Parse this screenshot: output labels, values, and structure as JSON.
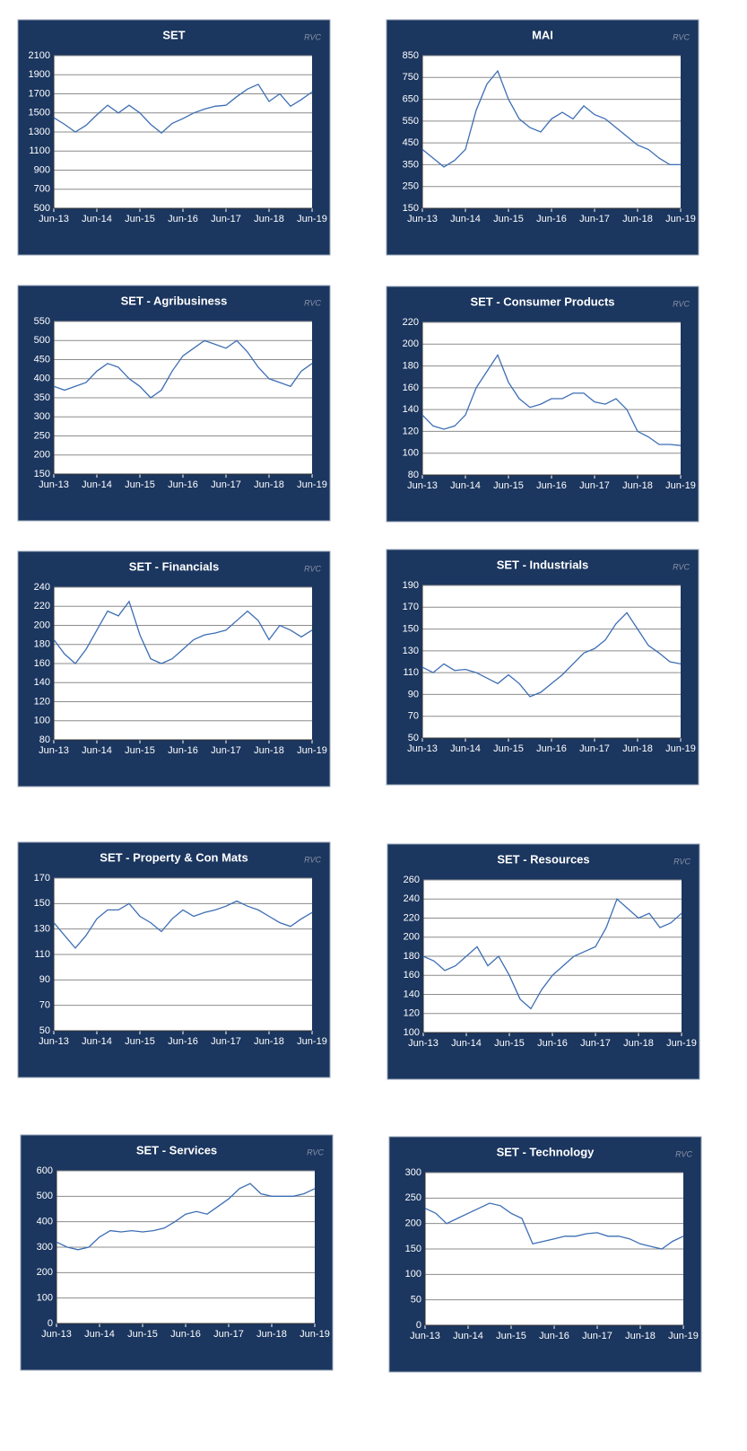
{
  "chart_data": [
    {
      "type": "line",
      "title": "SET",
      "annotation": "RVC",
      "color": "#3d6eb4",
      "x": [
        "Jun-13",
        "Sep-13",
        "Dec-13",
        "Mar-14",
        "Jun-14",
        "Sep-14",
        "Dec-14",
        "Mar-15",
        "Jun-15",
        "Sep-15",
        "Dec-15",
        "Mar-16",
        "Jun-16",
        "Sep-16",
        "Dec-16",
        "Mar-17",
        "Jun-17",
        "Sep-17",
        "Dec-17",
        "Mar-18",
        "Jun-18",
        "Sep-18",
        "Dec-18",
        "Mar-19",
        "Jun-19"
      ],
      "xticks": [
        "Jun-13",
        "Jun-14",
        "Jun-15",
        "Jun-16",
        "Jun-17",
        "Jun-18",
        "Jun-19"
      ],
      "values": [
        1450,
        1380,
        1300,
        1370,
        1480,
        1580,
        1500,
        1580,
        1500,
        1380,
        1290,
        1390,
        1440,
        1500,
        1540,
        1570,
        1580,
        1670,
        1750,
        1800,
        1620,
        1700,
        1570,
        1640,
        1720
      ],
      "ylim": [
        500,
        2100
      ],
      "yticks": [
        500,
        700,
        900,
        1100,
        1300,
        1500,
        1700,
        1900,
        2100
      ],
      "grid": true
    },
    {
      "type": "line",
      "title": "MAI",
      "annotation": "RVC",
      "color": "#3d6eb4",
      "x": [
        "Jun-13",
        "Sep-13",
        "Dec-13",
        "Mar-14",
        "Jun-14",
        "Sep-14",
        "Dec-14",
        "Mar-15",
        "Jun-15",
        "Sep-15",
        "Dec-15",
        "Mar-16",
        "Jun-16",
        "Sep-16",
        "Dec-16",
        "Mar-17",
        "Jun-17",
        "Sep-17",
        "Dec-17",
        "Mar-18",
        "Jun-18",
        "Sep-18",
        "Dec-18",
        "Mar-19",
        "Jun-19"
      ],
      "xticks": [
        "Jun-13",
        "Jun-14",
        "Jun-15",
        "Jun-16",
        "Jun-17",
        "Jun-18",
        "Jun-19"
      ],
      "values": [
        420,
        380,
        340,
        370,
        420,
        600,
        720,
        780,
        650,
        560,
        520,
        500,
        560,
        590,
        560,
        620,
        580,
        560,
        520,
        480,
        440,
        420,
        380,
        350,
        350
      ],
      "ylim": [
        150,
        850
      ],
      "yticks": [
        150,
        250,
        350,
        450,
        550,
        650,
        750,
        850
      ],
      "grid": true
    },
    {
      "type": "line",
      "title": "SET - Agribusiness",
      "annotation": "RVC",
      "color": "#3d6eb4",
      "x": [
        "Jun-13",
        "Sep-13",
        "Dec-13",
        "Mar-14",
        "Jun-14",
        "Sep-14",
        "Dec-14",
        "Mar-15",
        "Jun-15",
        "Sep-15",
        "Dec-15",
        "Mar-16",
        "Jun-16",
        "Sep-16",
        "Dec-16",
        "Mar-17",
        "Jun-17",
        "Sep-17",
        "Dec-17",
        "Mar-18",
        "Jun-18",
        "Sep-18",
        "Dec-18",
        "Mar-19",
        "Jun-19"
      ],
      "xticks": [
        "Jun-13",
        "Jun-14",
        "Jun-15",
        "Jun-16",
        "Jun-17",
        "Jun-18",
        "Jun-19"
      ],
      "values": [
        380,
        370,
        380,
        390,
        420,
        440,
        430,
        400,
        380,
        350,
        370,
        420,
        460,
        480,
        500,
        490,
        480,
        500,
        470,
        430,
        400,
        390,
        380,
        420,
        440
      ],
      "ylim": [
        150,
        550
      ],
      "yticks": [
        150,
        200,
        250,
        300,
        350,
        400,
        450,
        500,
        550
      ],
      "grid": true
    },
    {
      "type": "line",
      "title": "SET - Consumer Products",
      "annotation": "RVC",
      "color": "#3d6eb4",
      "x": [
        "Jun-13",
        "Sep-13",
        "Dec-13",
        "Mar-14",
        "Jun-14",
        "Sep-14",
        "Dec-14",
        "Mar-15",
        "Jun-15",
        "Sep-15",
        "Dec-15",
        "Mar-16",
        "Jun-16",
        "Sep-16",
        "Dec-16",
        "Mar-17",
        "Jun-17",
        "Sep-17",
        "Dec-17",
        "Mar-18",
        "Jun-18",
        "Sep-18",
        "Dec-18",
        "Mar-19",
        "Jun-19"
      ],
      "xticks": [
        "Jun-13",
        "Jun-14",
        "Jun-15",
        "Jun-16",
        "Jun-17",
        "Jun-18",
        "Jun-19"
      ],
      "values": [
        135,
        125,
        122,
        125,
        135,
        160,
        175,
        190,
        165,
        150,
        142,
        145,
        150,
        150,
        155,
        155,
        147,
        145,
        150,
        140,
        120,
        115,
        108,
        108,
        107
      ],
      "ylim": [
        80,
        220
      ],
      "yticks": [
        80,
        100,
        120,
        140,
        160,
        180,
        200,
        220
      ],
      "grid": true
    },
    {
      "type": "line",
      "title": "SET - Financials",
      "annotation": "RVC",
      "color": "#3d6eb4",
      "x": [
        "Jun-13",
        "Sep-13",
        "Dec-13",
        "Mar-14",
        "Jun-14",
        "Sep-14",
        "Dec-14",
        "Mar-15",
        "Jun-15",
        "Sep-15",
        "Dec-15",
        "Mar-16",
        "Jun-16",
        "Sep-16",
        "Dec-16",
        "Mar-17",
        "Jun-17",
        "Sep-17",
        "Dec-17",
        "Mar-18",
        "Jun-18",
        "Sep-18",
        "Dec-18",
        "Mar-19",
        "Jun-19"
      ],
      "xticks": [
        "Jun-13",
        "Jun-14",
        "Jun-15",
        "Jun-16",
        "Jun-17",
        "Jun-18",
        "Jun-19"
      ],
      "values": [
        185,
        170,
        160,
        175,
        195,
        215,
        210,
        225,
        190,
        165,
        160,
        165,
        175,
        185,
        190,
        192,
        195,
        205,
        215,
        205,
        185,
        200,
        195,
        188,
        195
      ],
      "ylim": [
        80,
        240
      ],
      "yticks": [
        80,
        100,
        120,
        140,
        160,
        180,
        200,
        220,
        240
      ],
      "grid": true
    },
    {
      "type": "line",
      "title": "SET - Industrials",
      "annotation": "RVC",
      "color": "#3d6eb4",
      "x": [
        "Jun-13",
        "Sep-13",
        "Dec-13",
        "Mar-14",
        "Jun-14",
        "Sep-14",
        "Dec-14",
        "Mar-15",
        "Jun-15",
        "Sep-15",
        "Dec-15",
        "Mar-16",
        "Jun-16",
        "Sep-16",
        "Dec-16",
        "Mar-17",
        "Jun-17",
        "Sep-17",
        "Dec-17",
        "Mar-18",
        "Jun-18",
        "Sep-18",
        "Dec-18",
        "Mar-19",
        "Jun-19"
      ],
      "xticks": [
        "Jun-13",
        "Jun-14",
        "Jun-15",
        "Jun-16",
        "Jun-17",
        "Jun-18",
        "Jun-19"
      ],
      "values": [
        115,
        110,
        118,
        112,
        113,
        110,
        105,
        100,
        108,
        100,
        88,
        92,
        100,
        108,
        118,
        128,
        132,
        140,
        155,
        165,
        150,
        135,
        128,
        120,
        118
      ],
      "ylim": [
        50,
        190
      ],
      "yticks": [
        50,
        70,
        90,
        110,
        130,
        150,
        170,
        190
      ],
      "grid": true
    },
    {
      "type": "line",
      "title": "SET - Property & Con Mats",
      "annotation": "RVC",
      "color": "#3d6eb4",
      "x": [
        "Jun-13",
        "Sep-13",
        "Dec-13",
        "Mar-14",
        "Jun-14",
        "Sep-14",
        "Dec-14",
        "Mar-15",
        "Jun-15",
        "Sep-15",
        "Dec-15",
        "Mar-16",
        "Jun-16",
        "Sep-16",
        "Dec-16",
        "Mar-17",
        "Jun-17",
        "Sep-17",
        "Dec-17",
        "Mar-18",
        "Jun-18",
        "Sep-18",
        "Dec-18",
        "Mar-19",
        "Jun-19"
      ],
      "xticks": [
        "Jun-13",
        "Jun-14",
        "Jun-15",
        "Jun-16",
        "Jun-17",
        "Jun-18",
        "Jun-19"
      ],
      "values": [
        135,
        125,
        115,
        125,
        138,
        145,
        145,
        150,
        140,
        135,
        128,
        138,
        145,
        140,
        143,
        145,
        148,
        152,
        148,
        145,
        140,
        135,
        132,
        138,
        143
      ],
      "ylim": [
        50,
        170
      ],
      "yticks": [
        50,
        70,
        90,
        110,
        130,
        150,
        170
      ],
      "grid": true
    },
    {
      "type": "line",
      "title": "SET - Resources",
      "annotation": "RVC",
      "color": "#3d6eb4",
      "x": [
        "Jun-13",
        "Sep-13",
        "Dec-13",
        "Mar-14",
        "Jun-14",
        "Sep-14",
        "Dec-14",
        "Mar-15",
        "Jun-15",
        "Sep-15",
        "Dec-15",
        "Mar-16",
        "Jun-16",
        "Sep-16",
        "Dec-16",
        "Mar-17",
        "Jun-17",
        "Sep-17",
        "Dec-17",
        "Mar-18",
        "Jun-18",
        "Sep-18",
        "Dec-18",
        "Mar-19",
        "Jun-19"
      ],
      "xticks": [
        "Jun-13",
        "Jun-14",
        "Jun-15",
        "Jun-16",
        "Jun-17",
        "Jun-18",
        "Jun-19"
      ],
      "values": [
        180,
        175,
        165,
        170,
        180,
        190,
        170,
        180,
        160,
        135,
        125,
        145,
        160,
        170,
        180,
        185,
        190,
        210,
        240,
        230,
        220,
        225,
        210,
        215,
        225
      ],
      "ylim": [
        100,
        260
      ],
      "yticks": [
        100,
        120,
        140,
        160,
        180,
        200,
        220,
        240,
        260
      ],
      "grid": true
    },
    {
      "type": "line",
      "title": "SET - Services",
      "annotation": "RVC",
      "color": "#3d6eb4",
      "x": [
        "Jun-13",
        "Sep-13",
        "Dec-13",
        "Mar-14",
        "Jun-14",
        "Sep-14",
        "Dec-14",
        "Mar-15",
        "Jun-15",
        "Sep-15",
        "Dec-15",
        "Mar-16",
        "Jun-16",
        "Sep-16",
        "Dec-16",
        "Mar-17",
        "Jun-17",
        "Sep-17",
        "Dec-17",
        "Mar-18",
        "Jun-18",
        "Sep-18",
        "Dec-18",
        "Mar-19",
        "Jun-19"
      ],
      "xticks": [
        "Jun-13",
        "Jun-14",
        "Jun-15",
        "Jun-16",
        "Jun-17",
        "Jun-18",
        "Jun-19"
      ],
      "values": [
        320,
        300,
        290,
        300,
        340,
        365,
        360,
        365,
        360,
        365,
        375,
        400,
        430,
        440,
        430,
        460,
        490,
        530,
        550,
        510,
        500,
        500,
        500,
        510,
        530
      ],
      "ylim": [
        0,
        600
      ],
      "yticks": [
        0,
        100,
        200,
        300,
        400,
        500,
        600
      ],
      "grid": true
    },
    {
      "type": "line",
      "title": "SET - Technology",
      "annotation": "RVC",
      "color": "#3d6eb4",
      "x": [
        "Jun-13",
        "Sep-13",
        "Dec-13",
        "Mar-14",
        "Jun-14",
        "Sep-14",
        "Dec-14",
        "Mar-15",
        "Jun-15",
        "Sep-15",
        "Dec-15",
        "Mar-16",
        "Jun-16",
        "Sep-16",
        "Dec-16",
        "Mar-17",
        "Jun-17",
        "Sep-17",
        "Dec-17",
        "Mar-18",
        "Jun-18",
        "Sep-18",
        "Dec-18",
        "Mar-19",
        "Jun-19"
      ],
      "xticks": [
        "Jun-13",
        "Jun-14",
        "Jun-15",
        "Jun-16",
        "Jun-17",
        "Jun-18",
        "Jun-19"
      ],
      "values": [
        230,
        220,
        200,
        210,
        220,
        230,
        240,
        235,
        220,
        210,
        160,
        165,
        170,
        175,
        175,
        180,
        182,
        175,
        175,
        170,
        160,
        155,
        150,
        165,
        175
      ],
      "ylim": [
        0,
        300
      ],
      "yticks": [
        0,
        50,
        100,
        150,
        200,
        250,
        300
      ],
      "grid": true
    }
  ]
}
